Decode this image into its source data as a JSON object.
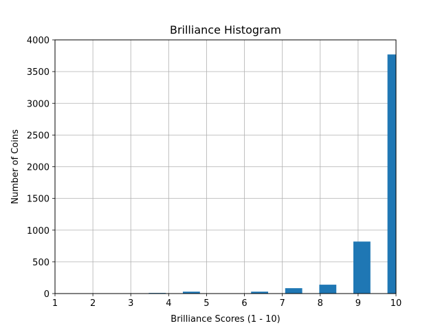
{
  "chart_data": {
    "type": "bar",
    "title": "Brilliance Histogram",
    "xlabel": "Brilliance Scores (1 - 10)",
    "ylabel": "Number of Coins",
    "xlim": [
      1,
      10
    ],
    "ylim": [
      0,
      4000
    ],
    "x_ticks": [
      "1",
      "2",
      "3",
      "4",
      "5",
      "6",
      "7",
      "8",
      "9",
      "10"
    ],
    "y_ticks": [
      "0",
      "500",
      "1000",
      "1500",
      "2000",
      "2500",
      "3000",
      "3500",
      "4000"
    ],
    "bins": [
      {
        "x": 1.0,
        "value": 0
      },
      {
        "x": 1.9,
        "value": 0
      },
      {
        "x": 2.8,
        "value": 0
      },
      {
        "x": 3.7,
        "value": 10
      },
      {
        "x": 4.6,
        "value": 30
      },
      {
        "x": 5.5,
        "value": 0
      },
      {
        "x": 6.4,
        "value": 30
      },
      {
        "x": 7.3,
        "value": 85
      },
      {
        "x": 8.2,
        "value": 140
      },
      {
        "x": 9.1,
        "value": 820
      },
      {
        "x": 10.0,
        "value": 3770
      }
    ],
    "bar_width": 0.45,
    "grid": true,
    "bar_color": "#1f77b4"
  }
}
